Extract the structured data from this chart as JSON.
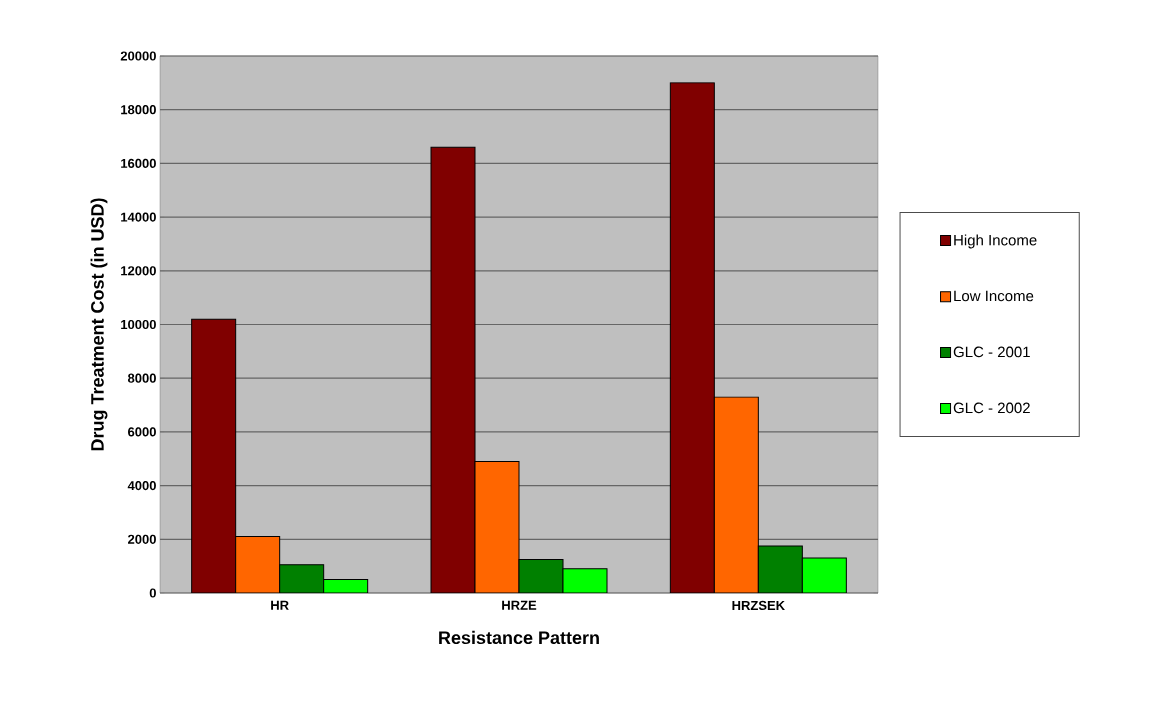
{
  "chart_data": {
    "type": "bar",
    "xlabel": "Resistance Pattern",
    "ylabel": "Drug Treatment Cost (in USD)",
    "categories": [
      "HR",
      "HRZE",
      "HRZSEK"
    ],
    "series": [
      {
        "name": "High Income",
        "color": "#800000",
        "values": [
          10200,
          16600,
          19000
        ]
      },
      {
        "name": "Low Income",
        "color": "#ff6600",
        "values": [
          2100,
          4900,
          7300
        ]
      },
      {
        "name": "GLC - 2001",
        "color": "#008000",
        "values": [
          1050,
          1250,
          1750
        ]
      },
      {
        "name": "GLC - 2002",
        "color": "#00ff00",
        "values": [
          500,
          900,
          1300
        ]
      }
    ],
    "ylim": [
      0,
      20000
    ],
    "yticks": [
      0,
      2000,
      4000,
      6000,
      8000,
      10000,
      12000,
      14000,
      16000,
      18000,
      20000
    ],
    "grid": "y",
    "legend": "right"
  }
}
